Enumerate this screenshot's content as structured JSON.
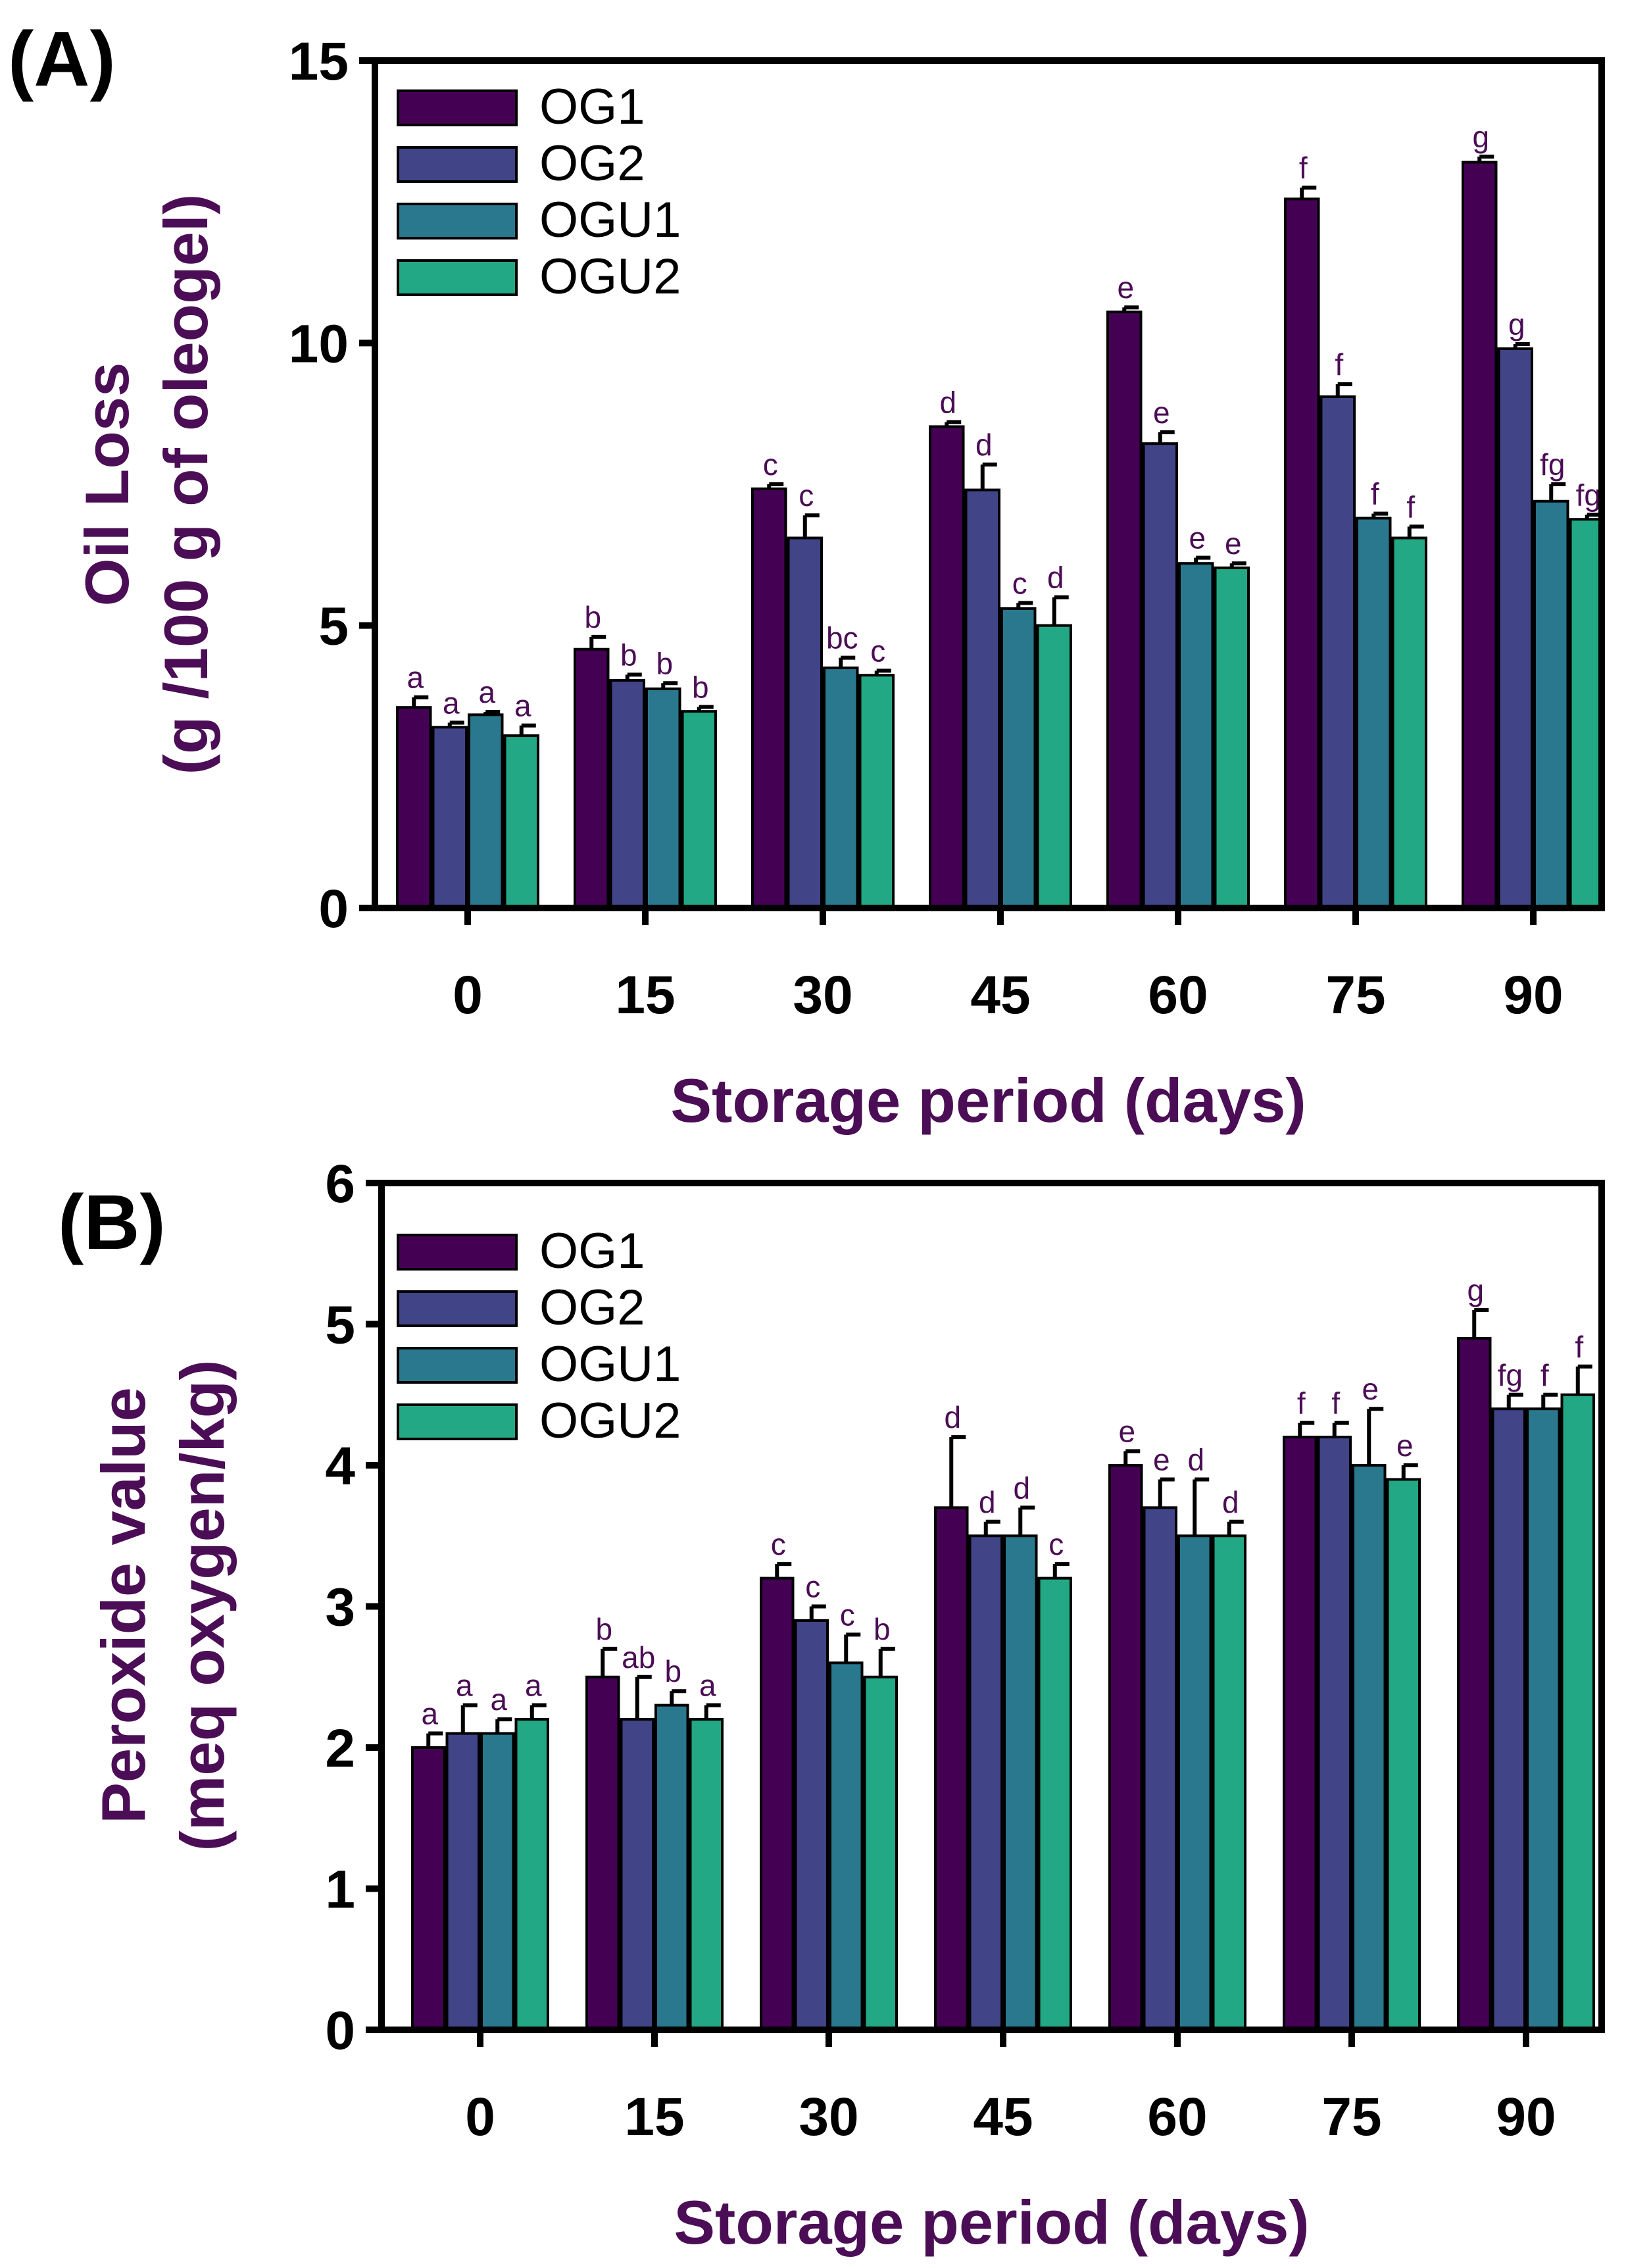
{
  "chart_data": [
    {
      "type": "bar",
      "panel_label": "(A)",
      "title": "",
      "xlabel": "Storage period (days)",
      "ylabel": [
        "Oil Loss",
        "(g /100 g of oleogel)"
      ],
      "ylim": [
        0,
        15
      ],
      "yticks": [
        "0",
        "5",
        "10",
        "15"
      ],
      "categories": [
        "0",
        "15",
        "30",
        "45",
        "60",
        "75",
        "90"
      ],
      "legend_position": "top-left",
      "series": [
        {
          "name": "OG1",
          "color": "#440154",
          "values": [
            3.55,
            4.58,
            7.42,
            8.52,
            10.55,
            12.55,
            13.2
          ],
          "errors": [
            0.18,
            0.22,
            0.08,
            0.08,
            0.08,
            0.2,
            0.1
          ],
          "labels": [
            "a",
            "b",
            "c",
            "d",
            "e",
            "f",
            "g"
          ]
        },
        {
          "name": "OG2",
          "color": "#414487",
          "values": [
            3.2,
            4.03,
            6.55,
            7.4,
            8.22,
            9.05,
            9.9
          ],
          "errors": [
            0.08,
            0.1,
            0.4,
            0.45,
            0.2,
            0.22,
            0.08
          ],
          "labels": [
            "a",
            "b",
            "c",
            "d",
            "e",
            "f",
            "g"
          ]
        },
        {
          "name": "OGU1",
          "color": "#2a788e",
          "values": [
            3.42,
            3.88,
            4.25,
            5.3,
            6.1,
            6.9,
            7.2
          ],
          "errors": [
            0.05,
            0.1,
            0.18,
            0.1,
            0.1,
            0.08,
            0.3
          ],
          "labels": [
            "a",
            "b",
            "bc",
            "c",
            "e",
            "f",
            "fg"
          ]
        },
        {
          "name": "OGU2",
          "color": "#22a884",
          "values": [
            3.05,
            3.48,
            4.12,
            5.0,
            6.02,
            6.55,
            6.88
          ],
          "errors": [
            0.18,
            0.08,
            0.08,
            0.5,
            0.08,
            0.2,
            0.08
          ],
          "labels": [
            "a",
            "b",
            "c",
            "d",
            "e",
            "f",
            "fg"
          ]
        }
      ]
    },
    {
      "type": "bar",
      "panel_label": "(B)",
      "title": "",
      "xlabel": "Storage period (days)",
      "ylabel": [
        "Peroxide value",
        "(meq oxygen/kg)"
      ],
      "ylim": [
        0,
        6
      ],
      "yticks": [
        "0",
        "1",
        "2",
        "3",
        "4",
        "5",
        "6"
      ],
      "categories": [
        "0",
        "15",
        "30",
        "45",
        "60",
        "75",
        "90"
      ],
      "legend_position": "top-left",
      "series": [
        {
          "name": "OG1",
          "color": "#440154",
          "values": [
            2.0,
            2.5,
            3.2,
            3.7,
            4.0,
            4.2,
            4.9
          ],
          "errors": [
            0.1,
            0.2,
            0.1,
            0.5,
            0.1,
            0.1,
            0.2
          ],
          "labels": [
            "a",
            "b",
            "c",
            "d",
            "e",
            "f",
            "g"
          ]
        },
        {
          "name": "OG2",
          "color": "#414487",
          "values": [
            2.1,
            2.2,
            2.9,
            3.5,
            3.7,
            4.2,
            4.4
          ],
          "errors": [
            0.2,
            0.3,
            0.1,
            0.1,
            0.2,
            0.1,
            0.1
          ],
          "labels": [
            "a",
            "ab",
            "c",
            "d",
            "e",
            "f",
            "fg"
          ]
        },
        {
          "name": "OGU1",
          "color": "#2a788e",
          "values": [
            2.1,
            2.3,
            2.6,
            3.5,
            3.5,
            4.0,
            4.4
          ],
          "errors": [
            0.1,
            0.1,
            0.2,
            0.2,
            0.4,
            0.4,
            0.1
          ],
          "labels": [
            "a",
            "b",
            "c",
            "d",
            "d",
            "e",
            "f"
          ]
        },
        {
          "name": "OGU2",
          "color": "#22a884",
          "values": [
            2.2,
            2.2,
            2.5,
            3.2,
            3.5,
            3.9,
            4.5
          ],
          "errors": [
            0.1,
            0.1,
            0.2,
            0.1,
            0.1,
            0.1,
            0.2
          ],
          "labels": [
            "a",
            "a",
            "b",
            "c",
            "d",
            "e",
            "f"
          ]
        }
      ]
    }
  ]
}
